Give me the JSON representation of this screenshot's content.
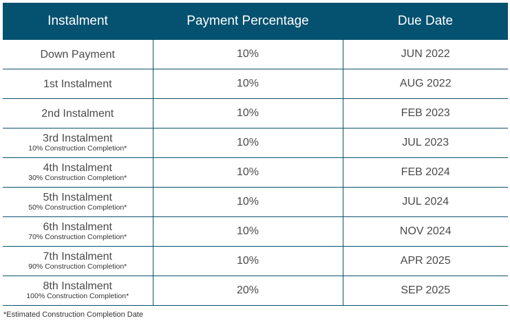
{
  "table": {
    "headers": {
      "instalment": "Instalment",
      "percentage": "Payment Percentage",
      "due_date": "Due Date"
    },
    "rows": [
      {
        "instalment": "Down Payment",
        "note": "",
        "percentage": "10%",
        "due_date": "JUN 2022"
      },
      {
        "instalment": "1st Instalment",
        "note": "",
        "percentage": "10%",
        "due_date": "AUG 2022"
      },
      {
        "instalment": "2nd Instalment",
        "note": "",
        "percentage": "10%",
        "due_date": "FEB 2023"
      },
      {
        "instalment": "3rd Instalment",
        "note": "10% Construction Completion*",
        "percentage": "10%",
        "due_date": "JUL 2023"
      },
      {
        "instalment": "4th Instalment",
        "note": "30% Construction Completion*",
        "percentage": "10%",
        "due_date": "FEB 2024"
      },
      {
        "instalment": "5th Instalment",
        "note": "50% Construction Completion*",
        "percentage": "10%",
        "due_date": "JUL 2024"
      },
      {
        "instalment": "6th Instalment",
        "note": "70% Construction Completion*",
        "percentage": "10%",
        "due_date": "NOV 2024"
      },
      {
        "instalment": "7th Instalment",
        "note": "90% Construction Completion*",
        "percentage": "10%",
        "due_date": "APR 2025"
      },
      {
        "instalment": "8th Instalment",
        "note": "100% Construction Completion*",
        "percentage": "20%",
        "due_date": "SEP 2025"
      }
    ]
  },
  "footnote": "*Estimated Construction Completion Date",
  "colors": {
    "header_bg": "#045170",
    "header_text": "#ffffff",
    "border": "#0a4f6c",
    "body_text": "#4a4a4a"
  }
}
